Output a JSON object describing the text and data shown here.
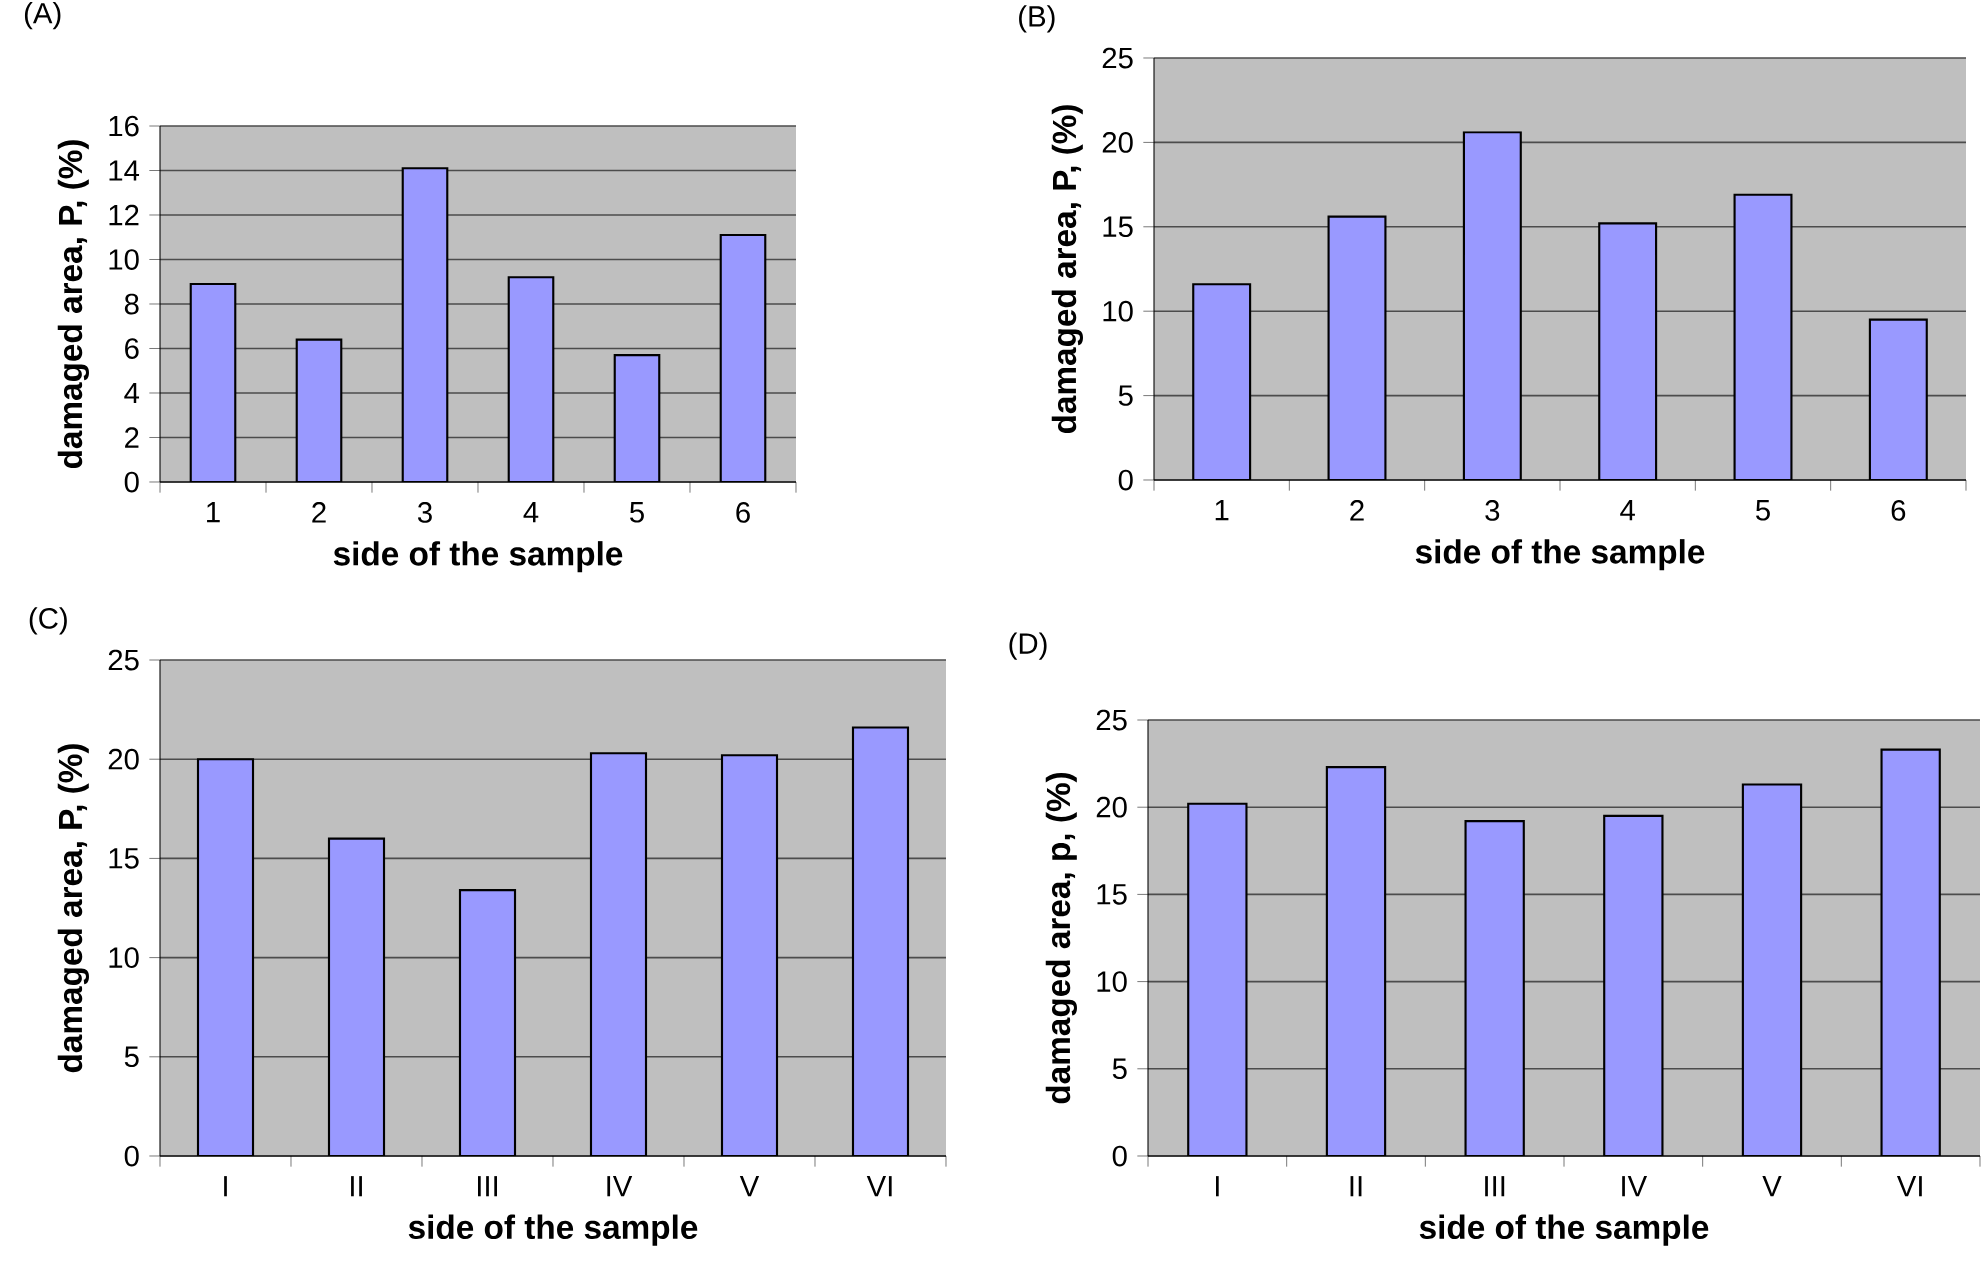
{
  "chart_data": [
    {
      "type": "bar",
      "title": "(A)",
      "xlabel": "side of the sample",
      "ylabel": "damaged area, P, (%)",
      "categories": [
        "1",
        "2",
        "3",
        "4",
        "5",
        "6"
      ],
      "values": [
        8.9,
        6.4,
        14.1,
        9.2,
        5.7,
        11.1
      ],
      "color": "#9999ff",
      "ylim": [
        0,
        16
      ],
      "yticks": [
        0,
        2,
        4,
        6,
        8,
        10,
        12,
        14,
        16
      ],
      "grid": "y"
    },
    {
      "type": "bar",
      "title": "(B)",
      "xlabel": "side of the sample",
      "ylabel": "damaged area, P, (%)",
      "categories": [
        "1",
        "2",
        "3",
        "4",
        "5",
        "6"
      ],
      "values": [
        11.6,
        15.6,
        20.6,
        15.2,
        16.9,
        9.5
      ],
      "color": "#9999ff",
      "ylim": [
        0,
        25
      ],
      "yticks": [
        0,
        5,
        10,
        15,
        20,
        25
      ],
      "grid": "y"
    },
    {
      "type": "bar",
      "title": "(C)",
      "xlabel": "side of the sample",
      "ylabel": "damaged area, P, (%)",
      "categories": [
        "I",
        "II",
        "III",
        "IV",
        "V",
        "VI"
      ],
      "values": [
        20.0,
        16.0,
        13.4,
        20.3,
        20.2,
        21.6
      ],
      "color": "#9999ff",
      "ylim": [
        0,
        25
      ],
      "yticks": [
        0,
        5,
        10,
        15,
        20,
        25
      ],
      "grid": "y"
    },
    {
      "type": "bar",
      "title": "(D)",
      "xlabel": "side of the sample",
      "ylabel": "damaged area, p, (%)",
      "categories": [
        "I",
        "II",
        "III",
        "IV",
        "V",
        "VI"
      ],
      "values": [
        20.2,
        22.3,
        19.2,
        19.5,
        21.3,
        23.3
      ],
      "color": "#9999ff",
      "ylim": [
        0,
        25
      ],
      "yticks": [
        0,
        5,
        10,
        15,
        20,
        25
      ],
      "grid": "y"
    }
  ]
}
